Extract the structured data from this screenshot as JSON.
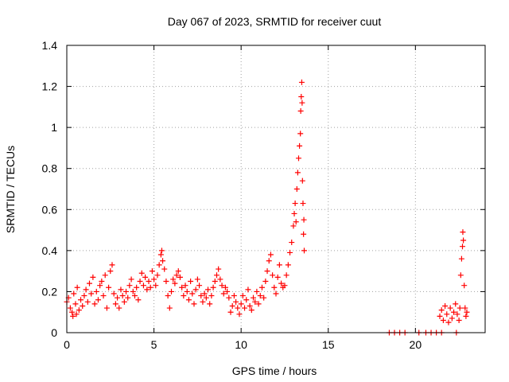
{
  "chart_data": {
    "type": "scatter",
    "title": "Day 067 of 2023, SRMTID for receiver cuut",
    "xlabel": "GPS time / hours",
    "ylabel": "SRMTID / TECUs",
    "xlim": [
      0,
      24
    ],
    "ylim": [
      0,
      1.4
    ],
    "xticks": [
      0,
      5,
      10,
      15,
      20
    ],
    "xtick_labels": [
      "0",
      "5",
      "10",
      "15",
      "20"
    ],
    "yticks": [
      0,
      0.2,
      0.4,
      0.6,
      0.8,
      1.0,
      1.2,
      1.4
    ],
    "ytick_labels": [
      "0",
      "0.2",
      "0.4",
      "0.6",
      "0.8",
      "1",
      "1.2",
      "1.4"
    ],
    "grid": true,
    "marker": "+",
    "color": "#ff0000",
    "series": [
      {
        "name": "SRMTID",
        "points": [
          [
            0.0,
            0.15
          ],
          [
            0.1,
            0.17
          ],
          [
            0.2,
            0.12
          ],
          [
            0.3,
            0.1
          ],
          [
            0.35,
            0.08
          ],
          [
            0.4,
            0.19
          ],
          [
            0.5,
            0.14
          ],
          [
            0.55,
            0.09
          ],
          [
            0.6,
            0.22
          ],
          [
            0.7,
            0.11
          ],
          [
            0.8,
            0.16
          ],
          [
            0.9,
            0.13
          ],
          [
            1.0,
            0.18
          ],
          [
            1.1,
            0.21
          ],
          [
            1.2,
            0.15
          ],
          [
            1.3,
            0.24
          ],
          [
            1.4,
            0.19
          ],
          [
            1.5,
            0.27
          ],
          [
            1.6,
            0.14
          ],
          [
            1.7,
            0.2
          ],
          [
            1.8,
            0.16
          ],
          [
            1.9,
            0.23
          ],
          [
            2.0,
            0.25
          ],
          [
            2.1,
            0.18
          ],
          [
            2.2,
            0.28
          ],
          [
            2.3,
            0.12
          ],
          [
            2.4,
            0.22
          ],
          [
            2.5,
            0.3
          ],
          [
            2.6,
            0.33
          ],
          [
            2.7,
            0.19
          ],
          [
            2.8,
            0.14
          ],
          [
            2.9,
            0.17
          ],
          [
            3.0,
            0.12
          ],
          [
            3.1,
            0.21
          ],
          [
            3.2,
            0.18
          ],
          [
            3.3,
            0.15
          ],
          [
            3.4,
            0.2
          ],
          [
            3.5,
            0.17
          ],
          [
            3.6,
            0.23
          ],
          [
            3.7,
            0.26
          ],
          [
            3.8,
            0.2
          ],
          [
            3.9,
            0.18
          ],
          [
            4.0,
            0.22
          ],
          [
            4.1,
            0.16
          ],
          [
            4.2,
            0.25
          ],
          [
            4.3,
            0.29
          ],
          [
            4.4,
            0.23
          ],
          [
            4.5,
            0.27
          ],
          [
            4.6,
            0.21
          ],
          [
            4.7,
            0.25
          ],
          [
            4.8,
            0.22
          ],
          [
            4.9,
            0.3
          ],
          [
            5.0,
            0.26
          ],
          [
            5.1,
            0.23
          ],
          [
            5.2,
            0.28
          ],
          [
            5.3,
            0.33
          ],
          [
            5.4,
            0.38
          ],
          [
            5.45,
            0.4
          ],
          [
            5.5,
            0.35
          ],
          [
            5.6,
            0.31
          ],
          [
            5.7,
            0.25
          ],
          [
            5.8,
            0.18
          ],
          [
            5.9,
            0.12
          ],
          [
            6.0,
            0.2
          ],
          [
            6.1,
            0.26
          ],
          [
            6.2,
            0.24
          ],
          [
            6.3,
            0.28
          ],
          [
            6.4,
            0.3
          ],
          [
            6.5,
            0.27
          ],
          [
            6.6,
            0.22
          ],
          [
            6.7,
            0.18
          ],
          [
            6.8,
            0.23
          ],
          [
            6.9,
            0.2
          ],
          [
            7.0,
            0.16
          ],
          [
            7.1,
            0.25
          ],
          [
            7.2,
            0.19
          ],
          [
            7.3,
            0.14
          ],
          [
            7.4,
            0.21
          ],
          [
            7.5,
            0.26
          ],
          [
            7.6,
            0.23
          ],
          [
            7.7,
            0.18
          ],
          [
            7.8,
            0.15
          ],
          [
            7.9,
            0.19
          ],
          [
            8.0,
            0.17
          ],
          [
            8.1,
            0.21
          ],
          [
            8.2,
            0.14
          ],
          [
            8.3,
            0.18
          ],
          [
            8.4,
            0.22
          ],
          [
            8.5,
            0.25
          ],
          [
            8.6,
            0.28
          ],
          [
            8.7,
            0.31
          ],
          [
            8.8,
            0.26
          ],
          [
            8.9,
            0.23
          ],
          [
            9.0,
            0.19
          ],
          [
            9.1,
            0.22
          ],
          [
            9.2,
            0.2
          ],
          [
            9.3,
            0.17
          ],
          [
            9.4,
            0.1
          ],
          [
            9.5,
            0.13
          ],
          [
            9.6,
            0.18
          ],
          [
            9.7,
            0.15
          ],
          [
            9.8,
            0.12
          ],
          [
            9.9,
            0.09
          ],
          [
            10.0,
            0.14
          ],
          [
            10.1,
            0.18
          ],
          [
            10.2,
            0.12
          ],
          [
            10.3,
            0.16
          ],
          [
            10.4,
            0.21
          ],
          [
            10.5,
            0.13
          ],
          [
            10.6,
            0.11
          ],
          [
            10.7,
            0.17
          ],
          [
            10.8,
            0.15
          ],
          [
            10.9,
            0.2
          ],
          [
            11.0,
            0.14
          ],
          [
            11.1,
            0.18
          ],
          [
            11.2,
            0.22
          ],
          [
            11.3,
            0.17
          ],
          [
            11.4,
            0.25
          ],
          [
            11.5,
            0.3
          ],
          [
            11.6,
            0.35
          ],
          [
            11.7,
            0.38
          ],
          [
            11.8,
            0.28
          ],
          [
            11.9,
            0.22
          ],
          [
            12.0,
            0.19
          ],
          [
            12.1,
            0.27
          ],
          [
            12.2,
            0.33
          ],
          [
            12.3,
            0.24
          ],
          [
            12.4,
            0.22
          ],
          [
            12.5,
            0.23
          ],
          [
            12.6,
            0.28
          ],
          [
            12.7,
            0.33
          ],
          [
            12.8,
            0.39
          ],
          [
            12.9,
            0.44
          ],
          [
            13.0,
            0.52
          ],
          [
            13.05,
            0.58
          ],
          [
            13.1,
            0.63
          ],
          [
            13.15,
            0.54
          ],
          [
            13.2,
            0.7
          ],
          [
            13.25,
            0.78
          ],
          [
            13.3,
            0.85
          ],
          [
            13.35,
            0.91
          ],
          [
            13.4,
            0.97
          ],
          [
            13.42,
            1.08
          ],
          [
            13.45,
            1.15
          ],
          [
            13.48,
            1.22
          ],
          [
            13.5,
            1.12
          ],
          [
            13.52,
            0.74
          ],
          [
            13.55,
            0.63
          ],
          [
            13.58,
            0.48
          ],
          [
            13.6,
            0.55
          ],
          [
            13.62,
            0.4
          ],
          [
            18.5,
            0.0
          ],
          [
            18.8,
            0.0
          ],
          [
            19.1,
            0.0
          ],
          [
            19.4,
            0.0
          ],
          [
            20.2,
            0.0
          ],
          [
            20.6,
            0.0
          ],
          [
            20.9,
            0.0
          ],
          [
            21.2,
            0.0
          ],
          [
            21.5,
            0.0
          ],
          [
            21.4,
            0.08
          ],
          [
            21.5,
            0.11
          ],
          [
            21.6,
            0.06
          ],
          [
            21.7,
            0.13
          ],
          [
            21.8,
            0.09
          ],
          [
            21.9,
            0.05
          ],
          [
            22.0,
            0.12
          ],
          [
            22.1,
            0.07
          ],
          [
            22.2,
            0.1
          ],
          [
            22.3,
            0.14
          ],
          [
            22.35,
            0.0
          ],
          [
            22.4,
            0.09
          ],
          [
            22.5,
            0.06
          ],
          [
            22.55,
            0.12
          ],
          [
            22.6,
            0.28
          ],
          [
            22.65,
            0.36
          ],
          [
            22.7,
            0.42
          ],
          [
            22.72,
            0.49
          ],
          [
            22.75,
            0.45
          ],
          [
            22.8,
            0.23
          ],
          [
            22.85,
            0.12
          ],
          [
            22.9,
            0.08
          ],
          [
            22.95,
            0.1
          ]
        ]
      }
    ]
  }
}
